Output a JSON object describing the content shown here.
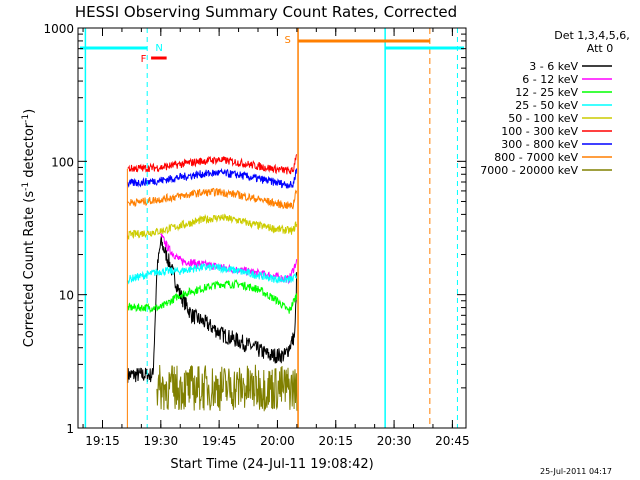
{
  "chart_data": {
    "type": "line",
    "title": "HESSI Observing Summary Count Rates, Corrected",
    "xlabel": "Start Time (24-Jul-11 19:08:42)",
    "ylabel_main": "Corrected Count Rate (s",
    "ylabel_sup1": "-1",
    "ylabel_mid": " detector",
    "ylabel_sup2": "-1",
    "ylabel_end": ")",
    "yscale": "log",
    "ylim": [
      1,
      1000
    ],
    "xlim_minutes": [
      19.15,
      20.47
    ],
    "xticks": [
      "19:15",
      "19:30",
      "19:45",
      "20:00",
      "20:15",
      "20:30",
      "20:45"
    ],
    "xtick_minutes": [
      1155,
      1170,
      1185,
      1200,
      1215,
      1230,
      1245
    ],
    "yticks": [
      "1",
      "10",
      "100",
      "1000"
    ],
    "ytick_values": [
      1,
      10,
      100,
      1000
    ],
    "legend_position": "right",
    "legend_header": [
      "Det 1,3,4,5,6,",
      "Att 0"
    ],
    "series": [
      {
        "name": "3 - 6 keV",
        "color": "#000000",
        "points": [
          [
            1161.5,
            2.5
          ],
          [
            1168,
            2.5
          ],
          [
            1169,
            15
          ],
          [
            1170,
            25
          ],
          [
            1172,
            18
          ],
          [
            1175,
            10
          ],
          [
            1178,
            7
          ],
          [
            1182,
            6
          ],
          [
            1186,
            5
          ],
          [
            1190,
            4.5
          ],
          [
            1194,
            4
          ],
          [
            1198,
            3.5
          ],
          [
            1202,
            3.5
          ],
          [
            1204.5,
            5
          ],
          [
            1205,
            15
          ]
        ]
      },
      {
        "name": "6 - 12 keV",
        "color": "#ff00ff",
        "points": [
          [
            1170,
            28
          ],
          [
            1172,
            22
          ],
          [
            1175,
            18
          ],
          [
            1180,
            17
          ],
          [
            1186,
            16
          ],
          [
            1192,
            15
          ],
          [
            1198,
            14
          ],
          [
            1203,
            13
          ],
          [
            1205,
            18
          ]
        ]
      },
      {
        "name": "12 - 25 keV",
        "color": "#00ff00",
        "points": [
          [
            1161.5,
            8
          ],
          [
            1166,
            8
          ],
          [
            1170,
            8
          ],
          [
            1175,
            10
          ],
          [
            1180,
            11
          ],
          [
            1185,
            12
          ],
          [
            1190,
            12
          ],
          [
            1195,
            11
          ],
          [
            1200,
            9
          ],
          [
            1203,
            7.5
          ],
          [
            1205,
            10
          ]
        ]
      },
      {
        "name": "25 - 50 keV",
        "color": "#00ffff",
        "points": [
          [
            1161.5,
            13
          ],
          [
            1166,
            14
          ],
          [
            1170,
            15
          ],
          [
            1175,
            15
          ],
          [
            1180,
            16
          ],
          [
            1185,
            16
          ],
          [
            1190,
            15
          ],
          [
            1195,
            14
          ],
          [
            1200,
            13
          ],
          [
            1204,
            13
          ],
          [
            1205,
            14
          ]
        ]
      },
      {
        "name": "50 - 100 keV",
        "color": "#cccc00",
        "points": [
          [
            1161.5,
            28
          ],
          [
            1166,
            29
          ],
          [
            1170,
            30
          ],
          [
            1175,
            33
          ],
          [
            1180,
            36
          ],
          [
            1185,
            38
          ],
          [
            1190,
            36
          ],
          [
            1195,
            33
          ],
          [
            1200,
            31
          ],
          [
            1204,
            30
          ],
          [
            1205,
            35
          ]
        ]
      },
      {
        "name": "100 - 300 keV",
        "color": "#ff0000",
        "points": [
          [
            1161.5,
            88
          ],
          [
            1166,
            89
          ],
          [
            1170,
            90
          ],
          [
            1175,
            95
          ],
          [
            1180,
            100
          ],
          [
            1185,
            103
          ],
          [
            1190,
            98
          ],
          [
            1195,
            92
          ],
          [
            1200,
            87
          ],
          [
            1204,
            84
          ],
          [
            1205,
            120
          ]
        ]
      },
      {
        "name": "300 - 800 keV",
        "color": "#0000ff",
        "points": [
          [
            1161.5,
            68
          ],
          [
            1166,
            70
          ],
          [
            1170,
            72
          ],
          [
            1175,
            76
          ],
          [
            1180,
            80
          ],
          [
            1185,
            82
          ],
          [
            1190,
            79
          ],
          [
            1195,
            74
          ],
          [
            1200,
            69
          ],
          [
            1204,
            66
          ],
          [
            1205,
            90
          ]
        ]
      },
      {
        "name": "800 - 7000 keV",
        "color": "#ff7f00",
        "points": [
          [
            1161.5,
            49
          ],
          [
            1166,
            50
          ],
          [
            1170,
            52
          ],
          [
            1175,
            55
          ],
          [
            1180,
            58
          ],
          [
            1185,
            59
          ],
          [
            1190,
            56
          ],
          [
            1195,
            52
          ],
          [
            1200,
            48
          ],
          [
            1204,
            46
          ],
          [
            1205,
            65
          ]
        ]
      },
      {
        "name": "7000 - 20000 keV",
        "color": "#808000",
        "points": [
          [
            1169,
            2
          ],
          [
            1205,
            2
          ]
        ]
      }
    ],
    "annotations": {
      "attenuator_level_color": "#00ffff",
      "n_label": "N",
      "f_label": "F",
      "s_label": "S",
      "n_color": "#00ffff",
      "f_color": "#ff0000",
      "s_color": "#ff7f00"
    }
  },
  "footer_timestamp": "25-Jul-2011 04:17"
}
